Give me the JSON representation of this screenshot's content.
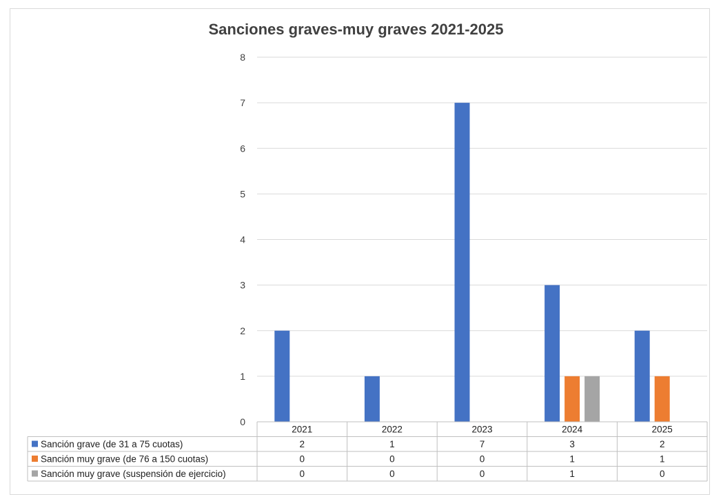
{
  "chart_data": {
    "type": "bar",
    "title": "Sanciones graves-muy graves 2021-2025",
    "categories": [
      "2021",
      "2022",
      "2023",
      "2024",
      "2025"
    ],
    "ylim": [
      0,
      8
    ],
    "yticks": [
      "0",
      "1",
      "2",
      "3",
      "4",
      "5",
      "6",
      "7",
      "8"
    ],
    "grid": true,
    "legend": "data-table",
    "series": [
      {
        "name": "Sanción grave (de 31 a 75 cuotas)",
        "color": "#4472c4",
        "values": [
          2,
          1,
          7,
          3,
          2
        ]
      },
      {
        "name": "Sanción muy grave (de 76 a 150 cuotas)",
        "color": "#ed7d31",
        "values": [
          0,
          0,
          0,
          1,
          1
        ]
      },
      {
        "name": "Sanción muy grave (suspensión de ejercicio)",
        "color": "#a5a5a5",
        "values": [
          0,
          0,
          0,
          1,
          0
        ]
      }
    ]
  }
}
